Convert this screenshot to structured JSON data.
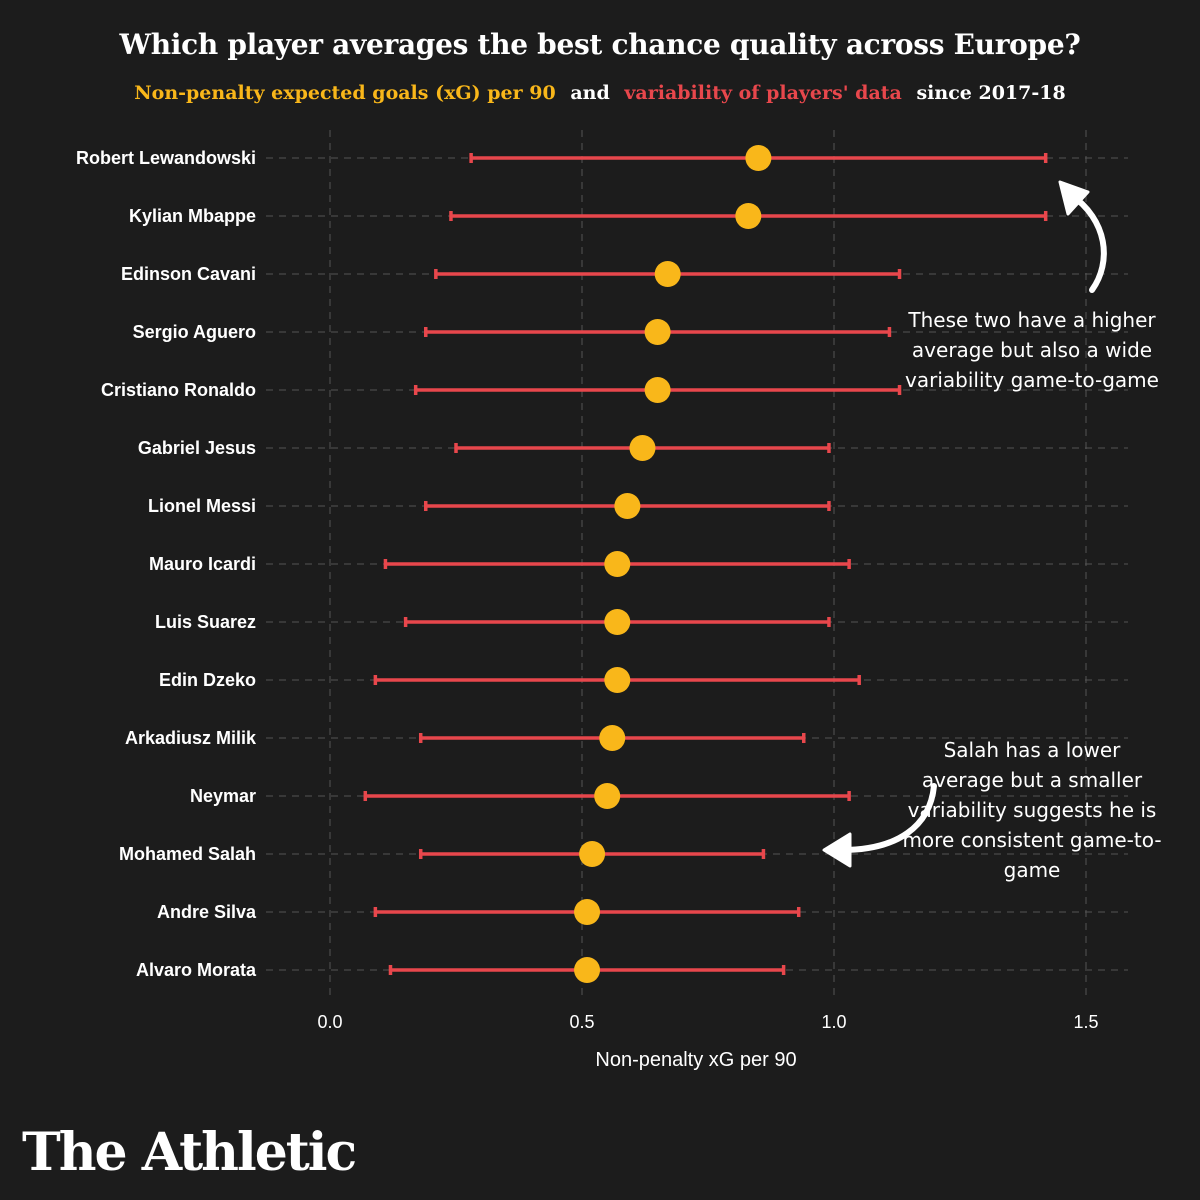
{
  "title": "Which player averages the best chance quality across Europe?",
  "subtitle": {
    "part1": "Non-penalty expected goals (xG) per 90",
    "part2": "and",
    "part3": "variability of players' data",
    "part4": "since 2017-18"
  },
  "colors": {
    "background": "#1c1c1c",
    "mean": "#f9b71a",
    "range": "#e8474c",
    "grid": "#555555",
    "text": "#ffffff"
  },
  "annotations": {
    "top": "These two have a higher average but also a wide variability game-to-game",
    "bottom": "Salah has a lower average but a smaller variability suggests he is more consistent game-to-game"
  },
  "brand": "The Athletic",
  "chart_data": {
    "type": "dot-range",
    "title": "Which player averages the best chance quality across Europe?",
    "xlabel": "Non-penalty xG per 90",
    "ylabel": "",
    "xlim": [
      0.0,
      1.5
    ],
    "xticks": [
      0.0,
      0.5,
      1.0,
      1.5
    ],
    "xtick_labels": [
      "0.0",
      "0.5",
      "1.0",
      "1.5"
    ],
    "grid": true,
    "series": [
      {
        "name": "Robert Lewandowski",
        "mean": 0.85,
        "low": 0.28,
        "high": 1.42
      },
      {
        "name": "Kylian Mbappe",
        "mean": 0.83,
        "low": 0.24,
        "high": 1.42
      },
      {
        "name": "Edinson Cavani",
        "mean": 0.67,
        "low": 0.21,
        "high": 1.13
      },
      {
        "name": "Sergio Aguero",
        "mean": 0.65,
        "low": 0.19,
        "high": 1.11
      },
      {
        "name": "Cristiano Ronaldo",
        "mean": 0.65,
        "low": 0.17,
        "high": 1.13
      },
      {
        "name": "Gabriel Jesus",
        "mean": 0.62,
        "low": 0.25,
        "high": 0.99
      },
      {
        "name": "Lionel Messi",
        "mean": 0.59,
        "low": 0.19,
        "high": 0.99
      },
      {
        "name": "Mauro Icardi",
        "mean": 0.57,
        "low": 0.11,
        "high": 1.03
      },
      {
        "name": "Luis Suarez",
        "mean": 0.57,
        "low": 0.15,
        "high": 0.99
      },
      {
        "name": "Edin Dzeko",
        "mean": 0.57,
        "low": 0.09,
        "high": 1.05
      },
      {
        "name": "Arkadiusz Milik",
        "mean": 0.56,
        "low": 0.18,
        "high": 0.94
      },
      {
        "name": "Neymar",
        "mean": 0.55,
        "low": 0.07,
        "high": 1.03
      },
      {
        "name": "Mohamed Salah",
        "mean": 0.52,
        "low": 0.18,
        "high": 0.86
      },
      {
        "name": "Andre Silva",
        "mean": 0.51,
        "low": 0.09,
        "high": 0.93
      },
      {
        "name": "Alvaro Morata",
        "mean": 0.51,
        "low": 0.12,
        "high": 0.9
      }
    ]
  }
}
